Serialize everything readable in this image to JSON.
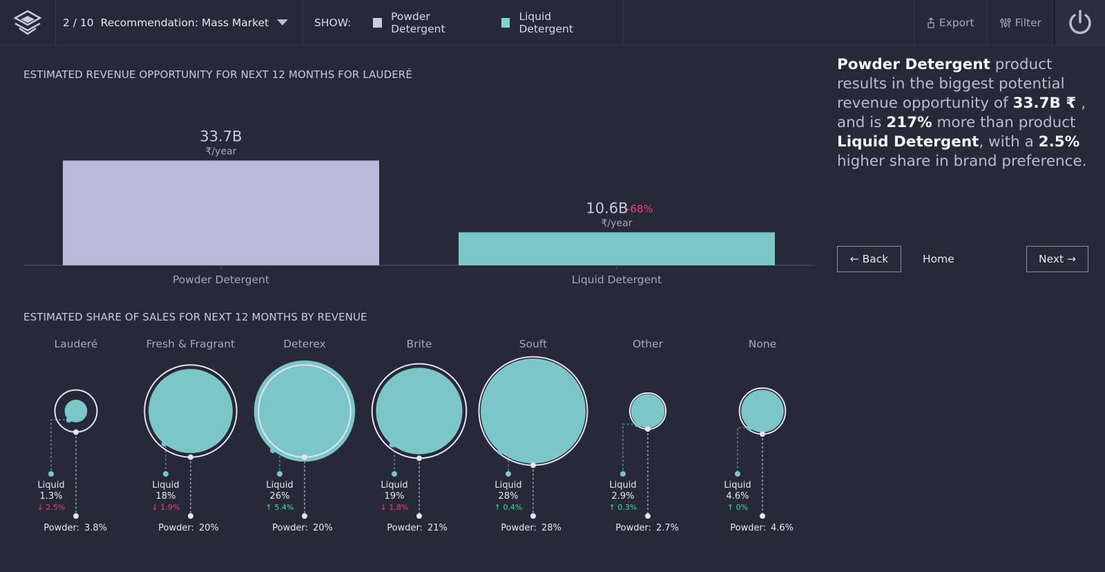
{
  "topbar": {
    "page_indicator": "2 / 10",
    "recommendation": "Recommendation: Mass Market",
    "show_label": "SHOW:",
    "legend": [
      {
        "label": "Powder Detergent",
        "color": "#c9cbe6"
      },
      {
        "label": "Liquid Detergent",
        "color": "#7fd4d2"
      }
    ],
    "export_label": "Export",
    "filter_label": "Filter"
  },
  "revenue_section": {
    "title": "ESTIMATED REVENUE OPPORTUNITY FOR NEXT 12 MONTHS FOR LAUDERÉ"
  },
  "share_section": {
    "title": "ESTIMATED SHARE OF SALES FOR NEXT 12 MONTHS BY REVENUE"
  },
  "summary": {
    "p1_bold": "Powder Detergent",
    "p1_text": " product results in the biggest potential revenue opportunity of ",
    "p2_bold": "33.7B ₹",
    "p2_text": " , and is ",
    "p3_bold": "217%",
    "p3_text": " more than product ",
    "p4_bold": "Liquid Detergent",
    "p4_text": ", with a ",
    "p5_bold": "2.5%",
    "p5_text": " higher share in brand preference."
  },
  "nav": {
    "back_label": "← Back",
    "home_label": "Home",
    "next_label": "Next →"
  },
  "chart_data": [
    {
      "type": "bar",
      "categories": [
        "Powder Detergent",
        "Liquid Detergent"
      ],
      "values": [
        33.7,
        10.6
      ],
      "value_labels": [
        "33.7B",
        "10.6B"
      ],
      "unit_label": "₹/year",
      "change_labels": [
        "",
        "-68%"
      ],
      "colors": [
        "#b7bad9",
        "#7cc5c9"
      ],
      "ylim": [
        0,
        36
      ]
    },
    {
      "type": "scatter",
      "brands": [
        {
          "name": "Lauderé",
          "liquid_label": "Liquid",
          "liquid_value": "1.3%",
          "liquid_change": "2.5%",
          "change_dir": "down",
          "powder_label": "Powder:",
          "powder_value": "3.8%",
          "liquid": 1.3,
          "powder": 3.8
        },
        {
          "name": "Fresh & Fragrant",
          "liquid_label": "Liquid",
          "liquid_value": "18%",
          "liquid_change": "1.9%",
          "change_dir": "down",
          "powder_label": "Powder:",
          "powder_value": "20%",
          "liquid": 18,
          "powder": 20
        },
        {
          "name": "Deterex",
          "liquid_label": "Liquid",
          "liquid_value": "26%",
          "liquid_change": "5.4%",
          "change_dir": "up",
          "powder_label": "Powder:",
          "powder_value": "20%",
          "liquid": 26,
          "powder": 20
        },
        {
          "name": "Brite",
          "liquid_label": "Liquid",
          "liquid_value": "19%",
          "liquid_change": "1.8%",
          "change_dir": "down",
          "powder_label": "Powder:",
          "powder_value": "21%",
          "liquid": 19,
          "powder": 21
        },
        {
          "name": "Souft",
          "liquid_label": "Liquid",
          "liquid_value": "28%",
          "liquid_change": "0.4%",
          "change_dir": "up",
          "powder_label": "Powder:",
          "powder_value": "28%",
          "liquid": 28,
          "powder": 28
        },
        {
          "name": "Other",
          "liquid_label": "Liquid",
          "liquid_value": "2.9%",
          "liquid_change": "0.3%",
          "change_dir": "up",
          "powder_label": "Powder:",
          "powder_value": "2.7%",
          "liquid": 2.9,
          "powder": 2.7
        },
        {
          "name": "None",
          "liquid_label": "Liquid",
          "liquid_value": "4.6%",
          "liquid_change": "0%",
          "change_dir": "up",
          "powder_label": "Powder:",
          "powder_value": "4.6%",
          "liquid": 4.6,
          "powder": 4.6
        }
      ],
      "liquid_color": "#7cc5c9",
      "powder_color": "#e4e5f2",
      "up_color": "#3ee08a",
      "down_color": "#f0437a"
    }
  ]
}
